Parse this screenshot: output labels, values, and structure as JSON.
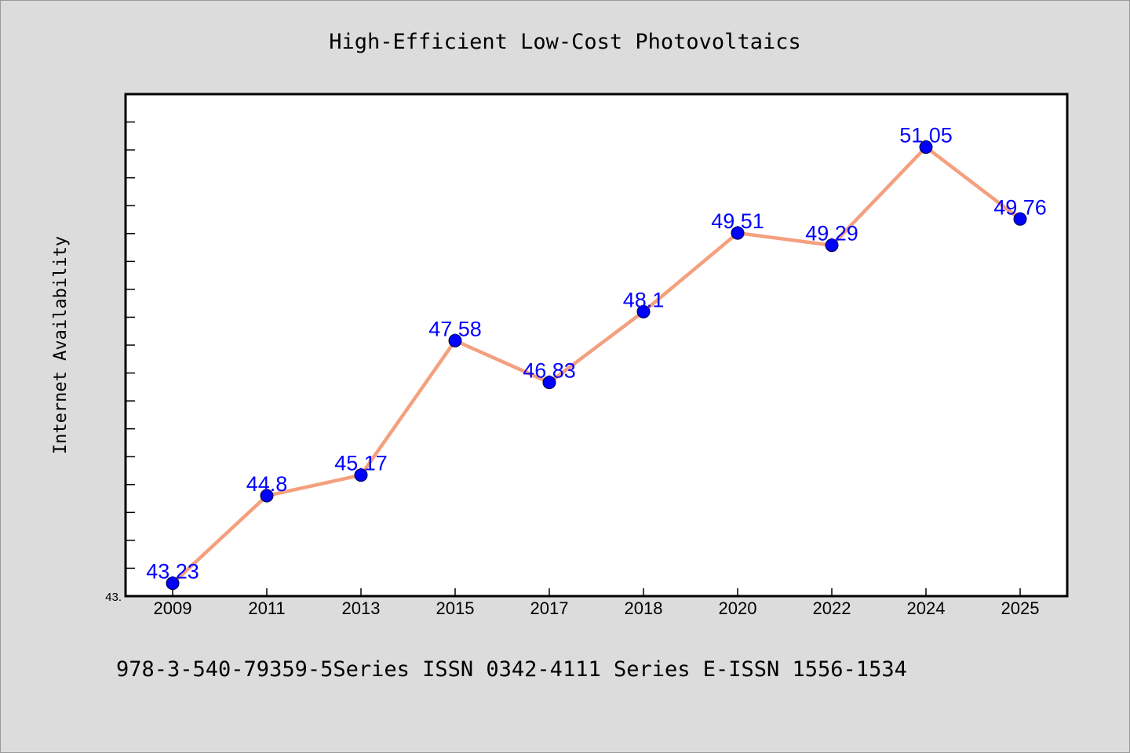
{
  "chart_data": {
    "type": "line",
    "title": "High-Efficient Low-Cost Photovoltaics",
    "xlabel": "",
    "ylabel": "Internet Availability",
    "categories": [
      "2009",
      "2011",
      "2013",
      "2015",
      "2017",
      "2018",
      "2020",
      "2022",
      "2024",
      "2025"
    ],
    "series": [
      {
        "values": [
          43.23,
          44.8,
          45.17,
          47.58,
          46.83,
          48.1,
          49.51,
          49.29,
          51.05,
          49.76
        ]
      }
    ],
    "data_labels": [
      "43.23",
      "44.8",
      "45.17",
      "47.58",
      "46.83",
      "48.1",
      "49.51",
      "49.29",
      "51.05",
      "49.76"
    ],
    "ytick_labels": [
      "43."
    ],
    "ylim": [
      43.0,
      52.0
    ],
    "grid": false,
    "legend": "none",
    "colors": {
      "line": "#f4a07f",
      "marker": "#0000ff",
      "data_label": "#0000ff",
      "plot_background": "#ffffff",
      "figure_background": "#dcdcdc"
    }
  },
  "footer": {
    "text": "978-3-540-79359-5Series ISSN 0342-4111 Series E-ISSN 1556-1534"
  }
}
